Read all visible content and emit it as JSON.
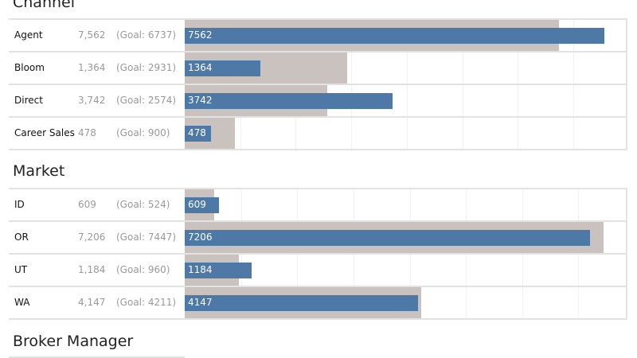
{
  "chart_data": [
    {
      "type": "bar",
      "title": "Channel",
      "xlim": [
        0,
        7930
      ],
      "categories": [
        "Agent",
        "Bloom",
        "Direct",
        "Career Sales"
      ],
      "values": [
        7562,
        1364,
        3742,
        478
      ],
      "value_labels": [
        "7,562",
        "1,364",
        "3,742",
        "478"
      ],
      "goals": [
        6737,
        2931,
        2574,
        900
      ],
      "goal_labels": [
        "(Goal: 6737)",
        "(Goal: 2931)",
        "(Goal: 2574)",
        "(Goal: 900)"
      ],
      "bar_labels": [
        "7562",
        "1364",
        "3742",
        "478"
      ]
    },
    {
      "type": "bar",
      "title": "Market",
      "xlim": [
        0,
        7830
      ],
      "categories": [
        "ID",
        "OR",
        "UT",
        "WA"
      ],
      "values": [
        609,
        7206,
        1184,
        4147
      ],
      "value_labels": [
        "609",
        "7,206",
        "1,184",
        "4,147"
      ],
      "goals": [
        524,
        7447,
        960,
        4211
      ],
      "goal_labels": [
        "(Goal: 524)",
        "(Goal: 7447)",
        "(Goal: 960)",
        "(Goal: 4211)"
      ],
      "bar_labels": [
        "609",
        "7206",
        "1184",
        "4147"
      ]
    }
  ],
  "broker_manager": {
    "title": "Broker Manager"
  },
  "colors": {
    "actual": "#4e79a7",
    "goal": "#cac2bf"
  }
}
